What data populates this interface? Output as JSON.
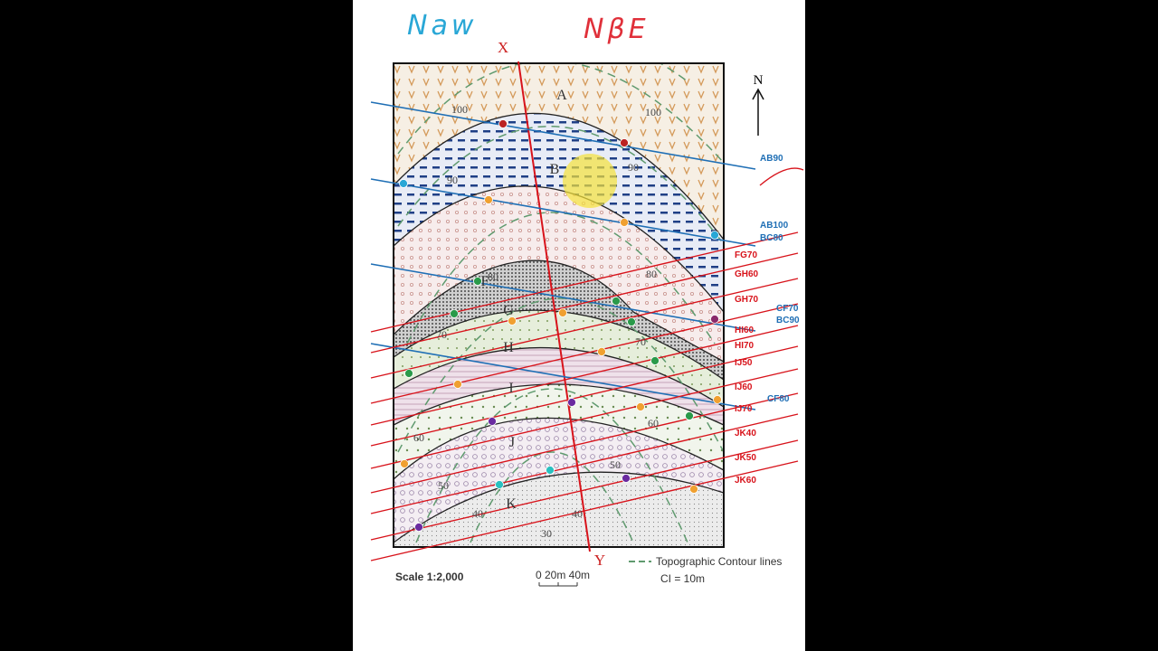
{
  "annotations": {
    "handwritten_left": "Naw",
    "handwritten_right": "NβE"
  },
  "map": {
    "section_start": "X",
    "section_end": "Y",
    "north": "N",
    "units": [
      "A",
      "B",
      "F",
      "G",
      "H",
      "I",
      "J",
      "K"
    ],
    "contours": [
      100,
      100,
      90,
      90,
      80,
      80,
      70,
      70,
      60,
      60,
      50,
      50,
      40,
      40,
      30
    ]
  },
  "strike_lines": {
    "blue": [
      "AB90",
      "AB100",
      "BC80",
      "CF70",
      "BC90",
      "CF80"
    ],
    "red": [
      "FG70",
      "GH60",
      "GH70",
      "HI60",
      "HI70",
      "IJ50",
      "IJ60",
      "IJ70",
      "JK40",
      "JK50",
      "JK60"
    ]
  },
  "legend": {
    "scale": "Scale 1:2,000",
    "scale_bar": "0 20m 40m",
    "contour_label": "Topographic Contour lines",
    "interval": "CI = 10m"
  }
}
